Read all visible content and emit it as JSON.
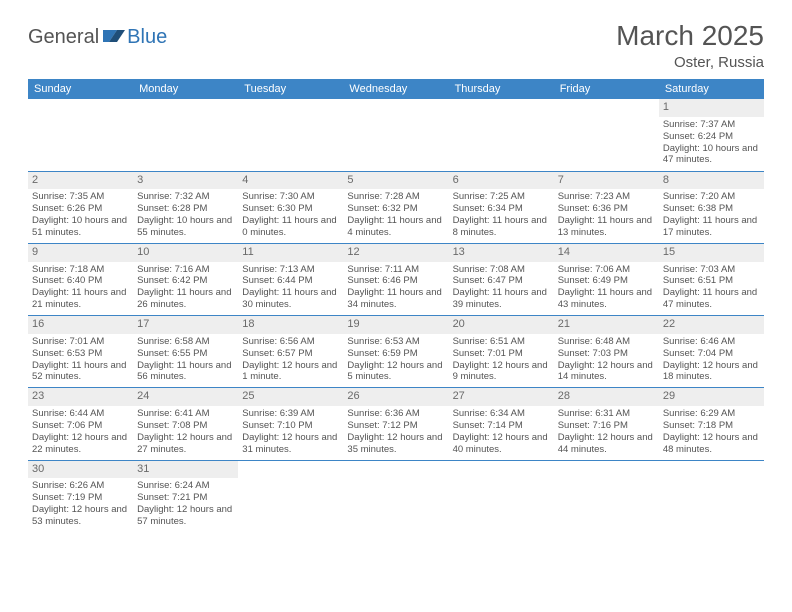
{
  "logo": {
    "text1": "General",
    "text2": "Blue"
  },
  "title": "March 2025",
  "location": "Oster, Russia",
  "colors": {
    "header_bg": "#3d85c6",
    "header_fg": "#ffffff",
    "text": "#545454",
    "daynum_bg": "#eeeeee",
    "border": "#3d85c6",
    "accent": "#2f74b5"
  },
  "weekdays": [
    "Sunday",
    "Monday",
    "Tuesday",
    "Wednesday",
    "Thursday",
    "Friday",
    "Saturday"
  ],
  "weeks": [
    [
      null,
      null,
      null,
      null,
      null,
      null,
      {
        "n": "1",
        "sr": "Sunrise: 7:37 AM",
        "ss": "Sunset: 6:24 PM",
        "dl": "Daylight: 10 hours and 47 minutes."
      }
    ],
    [
      {
        "n": "2",
        "sr": "Sunrise: 7:35 AM",
        "ss": "Sunset: 6:26 PM",
        "dl": "Daylight: 10 hours and 51 minutes."
      },
      {
        "n": "3",
        "sr": "Sunrise: 7:32 AM",
        "ss": "Sunset: 6:28 PM",
        "dl": "Daylight: 10 hours and 55 minutes."
      },
      {
        "n": "4",
        "sr": "Sunrise: 7:30 AM",
        "ss": "Sunset: 6:30 PM",
        "dl": "Daylight: 11 hours and 0 minutes."
      },
      {
        "n": "5",
        "sr": "Sunrise: 7:28 AM",
        "ss": "Sunset: 6:32 PM",
        "dl": "Daylight: 11 hours and 4 minutes."
      },
      {
        "n": "6",
        "sr": "Sunrise: 7:25 AM",
        "ss": "Sunset: 6:34 PM",
        "dl": "Daylight: 11 hours and 8 minutes."
      },
      {
        "n": "7",
        "sr": "Sunrise: 7:23 AM",
        "ss": "Sunset: 6:36 PM",
        "dl": "Daylight: 11 hours and 13 minutes."
      },
      {
        "n": "8",
        "sr": "Sunrise: 7:20 AM",
        "ss": "Sunset: 6:38 PM",
        "dl": "Daylight: 11 hours and 17 minutes."
      }
    ],
    [
      {
        "n": "9",
        "sr": "Sunrise: 7:18 AM",
        "ss": "Sunset: 6:40 PM",
        "dl": "Daylight: 11 hours and 21 minutes."
      },
      {
        "n": "10",
        "sr": "Sunrise: 7:16 AM",
        "ss": "Sunset: 6:42 PM",
        "dl": "Daylight: 11 hours and 26 minutes."
      },
      {
        "n": "11",
        "sr": "Sunrise: 7:13 AM",
        "ss": "Sunset: 6:44 PM",
        "dl": "Daylight: 11 hours and 30 minutes."
      },
      {
        "n": "12",
        "sr": "Sunrise: 7:11 AM",
        "ss": "Sunset: 6:46 PM",
        "dl": "Daylight: 11 hours and 34 minutes."
      },
      {
        "n": "13",
        "sr": "Sunrise: 7:08 AM",
        "ss": "Sunset: 6:47 PM",
        "dl": "Daylight: 11 hours and 39 minutes."
      },
      {
        "n": "14",
        "sr": "Sunrise: 7:06 AM",
        "ss": "Sunset: 6:49 PM",
        "dl": "Daylight: 11 hours and 43 minutes."
      },
      {
        "n": "15",
        "sr": "Sunrise: 7:03 AM",
        "ss": "Sunset: 6:51 PM",
        "dl": "Daylight: 11 hours and 47 minutes."
      }
    ],
    [
      {
        "n": "16",
        "sr": "Sunrise: 7:01 AM",
        "ss": "Sunset: 6:53 PM",
        "dl": "Daylight: 11 hours and 52 minutes."
      },
      {
        "n": "17",
        "sr": "Sunrise: 6:58 AM",
        "ss": "Sunset: 6:55 PM",
        "dl": "Daylight: 11 hours and 56 minutes."
      },
      {
        "n": "18",
        "sr": "Sunrise: 6:56 AM",
        "ss": "Sunset: 6:57 PM",
        "dl": "Daylight: 12 hours and 1 minute."
      },
      {
        "n": "19",
        "sr": "Sunrise: 6:53 AM",
        "ss": "Sunset: 6:59 PM",
        "dl": "Daylight: 12 hours and 5 minutes."
      },
      {
        "n": "20",
        "sr": "Sunrise: 6:51 AM",
        "ss": "Sunset: 7:01 PM",
        "dl": "Daylight: 12 hours and 9 minutes."
      },
      {
        "n": "21",
        "sr": "Sunrise: 6:48 AM",
        "ss": "Sunset: 7:03 PM",
        "dl": "Daylight: 12 hours and 14 minutes."
      },
      {
        "n": "22",
        "sr": "Sunrise: 6:46 AM",
        "ss": "Sunset: 7:04 PM",
        "dl": "Daylight: 12 hours and 18 minutes."
      }
    ],
    [
      {
        "n": "23",
        "sr": "Sunrise: 6:44 AM",
        "ss": "Sunset: 7:06 PM",
        "dl": "Daylight: 12 hours and 22 minutes."
      },
      {
        "n": "24",
        "sr": "Sunrise: 6:41 AM",
        "ss": "Sunset: 7:08 PM",
        "dl": "Daylight: 12 hours and 27 minutes."
      },
      {
        "n": "25",
        "sr": "Sunrise: 6:39 AM",
        "ss": "Sunset: 7:10 PM",
        "dl": "Daylight: 12 hours and 31 minutes."
      },
      {
        "n": "26",
        "sr": "Sunrise: 6:36 AM",
        "ss": "Sunset: 7:12 PM",
        "dl": "Daylight: 12 hours and 35 minutes."
      },
      {
        "n": "27",
        "sr": "Sunrise: 6:34 AM",
        "ss": "Sunset: 7:14 PM",
        "dl": "Daylight: 12 hours and 40 minutes."
      },
      {
        "n": "28",
        "sr": "Sunrise: 6:31 AM",
        "ss": "Sunset: 7:16 PM",
        "dl": "Daylight: 12 hours and 44 minutes."
      },
      {
        "n": "29",
        "sr": "Sunrise: 6:29 AM",
        "ss": "Sunset: 7:18 PM",
        "dl": "Daylight: 12 hours and 48 minutes."
      }
    ],
    [
      {
        "n": "30",
        "sr": "Sunrise: 6:26 AM",
        "ss": "Sunset: 7:19 PM",
        "dl": "Daylight: 12 hours and 53 minutes."
      },
      {
        "n": "31",
        "sr": "Sunrise: 6:24 AM",
        "ss": "Sunset: 7:21 PM",
        "dl": "Daylight: 12 hours and 57 minutes."
      },
      null,
      null,
      null,
      null,
      null
    ]
  ]
}
